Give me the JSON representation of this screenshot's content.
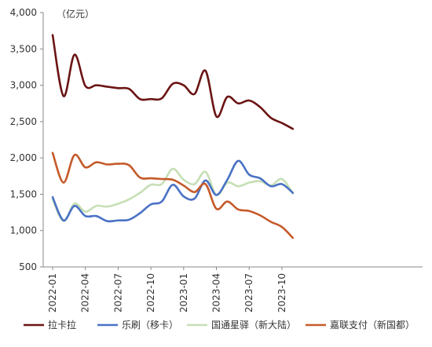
{
  "chart_data": {
    "type": "line",
    "unit_label": "（亿元）",
    "ylim": [
      500,
      4000
    ],
    "y_ticks": [
      500,
      1000,
      1500,
      2000,
      2500,
      3000,
      3500,
      4000
    ],
    "y_tick_labels": [
      "500",
      "1,000",
      "1,500",
      "2,000",
      "2,500",
      "3,000",
      "3,500",
      "4,000"
    ],
    "x": [
      "2022-01",
      "2022-02",
      "2022-03",
      "2022-04",
      "2022-05",
      "2022-06",
      "2022-07",
      "2022-08",
      "2022-09",
      "2022-10",
      "2022-11",
      "2022-12",
      "2023-01",
      "2023-02",
      "2023-03",
      "2023-04",
      "2023-05",
      "2023-06",
      "2023-07",
      "2023-08",
      "2023-09",
      "2023-10",
      "2023-11"
    ],
    "x_tick_labels": [
      "2022-01",
      "2022-04",
      "2022-07",
      "2022-10",
      "2023-01",
      "2023-04",
      "2023-07",
      "2023-10"
    ],
    "grid": false,
    "legend_position": "bottom",
    "series": [
      {
        "name": "拉卡拉",
        "color": "#6b1414",
        "values": [
          3690,
          2850,
          3420,
          2990,
          3000,
          2980,
          2960,
          2950,
          2810,
          2810,
          2820,
          3020,
          3000,
          2880,
          3200,
          2570,
          2840,
          2750,
          2790,
          2700,
          2550,
          2480,
          2400
        ]
      },
      {
        "name": "乐刷（移卡）",
        "color": "#4a72c4",
        "values": [
          1460,
          1140,
          1340,
          1200,
          1200,
          1130,
          1140,
          1150,
          1240,
          1360,
          1400,
          1630,
          1470,
          1440,
          1690,
          1490,
          1700,
          1960,
          1770,
          1720,
          1610,
          1640,
          1520
        ]
      },
      {
        "name": "国通星驿（新大陆）",
        "color": "#c5dfb4",
        "values": [
          1430,
          1130,
          1370,
          1260,
          1340,
          1330,
          1370,
          1430,
          1520,
          1630,
          1640,
          1850,
          1700,
          1640,
          1810,
          1490,
          1660,
          1610,
          1660,
          1680,
          1620,
          1710,
          1510
        ]
      },
      {
        "name": "嘉联支付（新国都）",
        "color": "#c55a2a",
        "values": [
          2070,
          1660,
          2040,
          1870,
          1940,
          1910,
          1920,
          1900,
          1730,
          1720,
          1710,
          1700,
          1620,
          1530,
          1640,
          1300,
          1400,
          1290,
          1270,
          1210,
          1120,
          1050,
          900
        ]
      }
    ]
  }
}
